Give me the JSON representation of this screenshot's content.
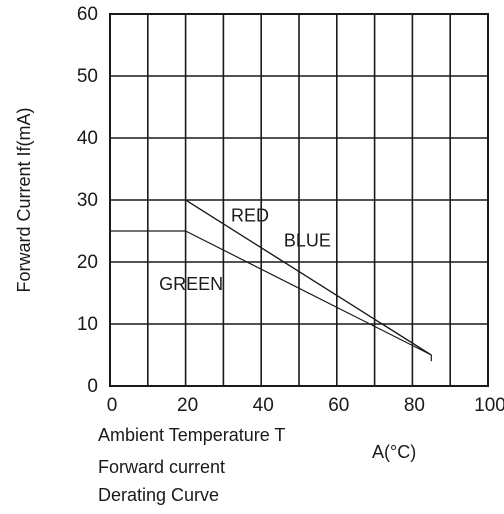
{
  "chart_data": {
    "type": "line",
    "xlabel_main": "Ambient Temperature T",
    "xlabel_unit": "A(°C)",
    "ylabel": "Forward Current If(mA)",
    "caption_lines": [
      "Forward current",
      "Derating Curve"
    ],
    "xlim": [
      0,
      100
    ],
    "ylim": [
      0,
      60
    ],
    "xticks": [
      0,
      20,
      40,
      60,
      80,
      100
    ],
    "yticks": [
      0,
      10,
      20,
      30,
      40,
      50,
      60
    ],
    "x_tick_labels": [
      "0",
      "20",
      "40",
      "60",
      "80",
      "100"
    ],
    "y_tick_labels": [
      "0",
      "10",
      "20",
      "30",
      "40",
      "50",
      "60"
    ],
    "grid": true,
    "series": [
      {
        "name": "RED",
        "x": [
          0,
          20,
          85
        ],
        "y": [
          30,
          30,
          5
        ]
      },
      {
        "name": "BLUE",
        "x": [
          0,
          20,
          85
        ],
        "y": [
          30,
          30,
          5
        ]
      },
      {
        "name": "GREEN",
        "x": [
          0,
          20,
          85
        ],
        "y": [
          25,
          25,
          5
        ]
      }
    ],
    "annotations": [
      {
        "text": "RED",
        "x": 32,
        "y": 26.5
      },
      {
        "text": "BLUE",
        "x": 46,
        "y": 22.5
      },
      {
        "text": "GREEN",
        "x": 13,
        "y": 15.5
      }
    ]
  }
}
